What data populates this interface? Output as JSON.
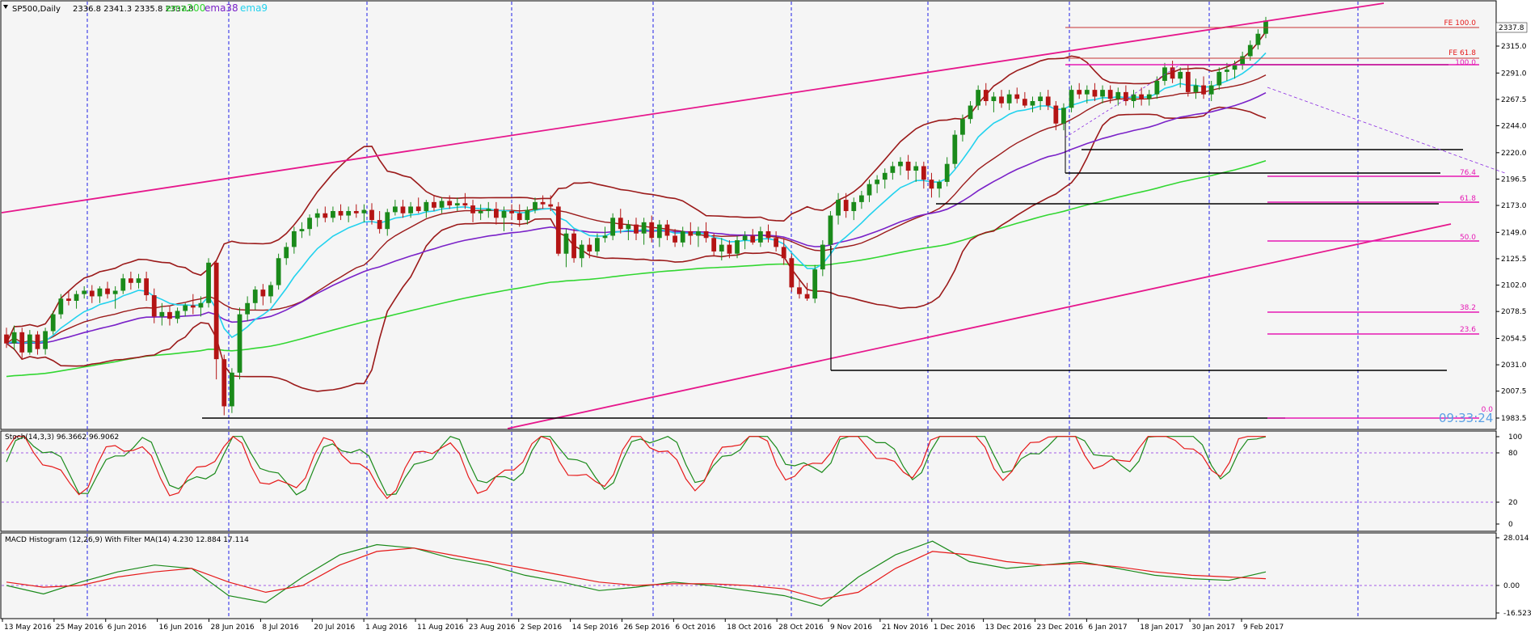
{
  "header": {
    "symbol": "SP500,Daily",
    "ohlc": "2336.8 2341.3 2335.8 2337.8",
    "ema200_label": "ema200",
    "ema38_label": "ema38",
    "ema9_label": "ema9"
  },
  "price_axis": {
    "ticks": [
      "2315.0",
      "2291.0",
      "2267.5",
      "2244.0",
      "2220.0",
      "2196.5",
      "2173.0",
      "2149.0",
      "2125.5",
      "2102.0",
      "2078.5",
      "2054.5",
      "2031.0",
      "2007.5",
      "1983.5"
    ],
    "current": "2337.8"
  },
  "clock": "09:33:24",
  "fib_labels": {
    "fe100": "FE 100.0",
    "fe618": "FE 61.8",
    "r100": "100.0",
    "r764": "76.4",
    "r618": "61.8",
    "r500": "50.0",
    "r382": "38.2",
    "r236": "23.6",
    "r0": "0.0"
  },
  "stoch": {
    "label": "Stoch(14,3,3) 96.3662 96.9062",
    "ticks": [
      "100",
      "80",
      "20",
      "0"
    ]
  },
  "macd": {
    "label": "MACD Histogram (12,26,9) With Filter MA(14) 4.230 12.884 17.114",
    "ticks": [
      "28.014",
      "0.00",
      "-16.523"
    ]
  },
  "date_axis": [
    "13 May 2016",
    "25 May 2016",
    "6 Jun 2016",
    "16 Jun 2016",
    "28 Jun 2016",
    "8 Jul 2016",
    "20 Jul 2016",
    "1 Aug 2016",
    "11 Aug 2016",
    "23 Aug 2016",
    "2 Sep 2016",
    "14 Sep 2016",
    "26 Sep 2016",
    "6 Oct 2016",
    "18 Oct 2016",
    "28 Oct 2016",
    "9 Nov 2016",
    "21 Nov 2016",
    "1 Dec 2016",
    "13 Dec 2016",
    "23 Dec 2016",
    "6 Jan 2017",
    "18 Jan 2017",
    "30 Jan 2017",
    "9 Feb 2017"
  ],
  "colors": {
    "bg": "#f5f5f5",
    "grid": "#1e1ee6",
    "up": "#1a8a1a",
    "down": "#b41414",
    "bollinger": "#9b1a1a",
    "ema200": "#32d732",
    "ema38": "#7a22c8",
    "ema9": "#22d2ee",
    "channel": "#e6178c",
    "fib": "#e619b4",
    "stoch_main": "#1a8a1a",
    "stoch_signal": "#e61919"
  },
  "chart_data": {
    "type": "candlestick",
    "ylim": [
      1983.5,
      2337.8
    ],
    "ohlc": [
      [
        2058,
        2064,
        2046,
        2050
      ],
      [
        2050,
        2066,
        2044,
        2060
      ],
      [
        2060,
        2064,
        2036,
        2042
      ],
      [
        2042,
        2062,
        2040,
        2058
      ],
      [
        2058,
        2061,
        2040,
        2045
      ],
      [
        2045,
        2064,
        2040,
        2061
      ],
      [
        2061,
        2079,
        2058,
        2076
      ],
      [
        2076,
        2094,
        2072,
        2090
      ],
      [
        2090,
        2097,
        2084,
        2088
      ],
      [
        2088,
        2097,
        2081,
        2094
      ],
      [
        2094,
        2101,
        2090,
        2097
      ],
      [
        2097,
        2102,
        2086,
        2092
      ],
      [
        2092,
        2101,
        2086,
        2099
      ],
      [
        2099,
        2105,
        2090,
        2094
      ],
      [
        2094,
        2101,
        2081,
        2097
      ],
      [
        2097,
        2112,
        2094,
        2108
      ],
      [
        2108,
        2114,
        2098,
        2104
      ],
      [
        2104,
        2112,
        2099,
        2108
      ],
      [
        2108,
        2114,
        2088,
        2093
      ],
      [
        2093,
        2099,
        2068,
        2074
      ],
      [
        2074,
        2086,
        2066,
        2078
      ],
      [
        2078,
        2083,
        2066,
        2072
      ],
      [
        2072,
        2082,
        2068,
        2079
      ],
      [
        2079,
        2086,
        2074,
        2084
      ],
      [
        2084,
        2094,
        2076,
        2082
      ],
      [
        2082,
        2092,
        2074,
        2086
      ],
      [
        2086,
        2126,
        2082,
        2122
      ],
      [
        2122,
        2124,
        2018,
        2036
      ],
      [
        2036,
        2040,
        1986,
        1994
      ],
      [
        1994,
        2028,
        1988,
        2024
      ],
      [
        2024,
        2082,
        2018,
        2076
      ],
      [
        2076,
        2092,
        2070,
        2086
      ],
      [
        2086,
        2101,
        2080,
        2098
      ],
      [
        2098,
        2103,
        2084,
        2092
      ],
      [
        2092,
        2105,
        2086,
        2102
      ],
      [
        2102,
        2130,
        2098,
        2126
      ],
      [
        2126,
        2140,
        2120,
        2136
      ],
      [
        2136,
        2154,
        2130,
        2150
      ],
      [
        2150,
        2158,
        2144,
        2152
      ],
      [
        2152,
        2165,
        2146,
        2162
      ],
      [
        2162,
        2170,
        2154,
        2166
      ],
      [
        2166,
        2172,
        2158,
        2162
      ],
      [
        2162,
        2172,
        2158,
        2168
      ],
      [
        2168,
        2174,
        2160,
        2164
      ],
      [
        2164,
        2172,
        2158,
        2168
      ],
      [
        2168,
        2174,
        2162,
        2166
      ],
      [
        2166,
        2174,
        2158,
        2169
      ],
      [
        2169,
        2175,
        2156,
        2160
      ],
      [
        2160,
        2168,
        2148,
        2152
      ],
      [
        2152,
        2170,
        2146,
        2167
      ],
      [
        2167,
        2178,
        2164,
        2172
      ],
      [
        2172,
        2178,
        2162,
        2166
      ],
      [
        2166,
        2176,
        2162,
        2172
      ],
      [
        2172,
        2180,
        2166,
        2168
      ],
      [
        2168,
        2178,
        2162,
        2176
      ],
      [
        2176,
        2182,
        2168,
        2171
      ],
      [
        2171,
        2180,
        2166,
        2177
      ],
      [
        2177,
        2182,
        2170,
        2173
      ],
      [
        2173,
        2180,
        2168,
        2175
      ],
      [
        2175,
        2184,
        2170,
        2173
      ],
      [
        2173,
        2178,
        2158,
        2166
      ],
      [
        2166,
        2174,
        2160,
        2168
      ],
      [
        2168,
        2176,
        2162,
        2170
      ],
      [
        2170,
        2176,
        2156,
        2162
      ],
      [
        2162,
        2172,
        2150,
        2168
      ],
      [
        2168,
        2174,
        2160,
        2166
      ],
      [
        2166,
        2174,
        2154,
        2160
      ],
      [
        2160,
        2172,
        2156,
        2169
      ],
      [
        2169,
        2180,
        2166,
        2176
      ],
      [
        2176,
        2182,
        2170,
        2174
      ],
      [
        2174,
        2182,
        2168,
        2172
      ],
      [
        2172,
        2176,
        2128,
        2130
      ],
      [
        2130,
        2152,
        2118,
        2148
      ],
      [
        2148,
        2152,
        2122,
        2126
      ],
      [
        2126,
        2142,
        2118,
        2138
      ],
      [
        2138,
        2144,
        2126,
        2132
      ],
      [
        2132,
        2148,
        2128,
        2144
      ],
      [
        2144,
        2154,
        2140,
        2146
      ],
      [
        2146,
        2166,
        2142,
        2162
      ],
      [
        2162,
        2170,
        2148,
        2152
      ],
      [
        2152,
        2160,
        2142,
        2156
      ],
      [
        2156,
        2162,
        2142,
        2148
      ],
      [
        2148,
        2162,
        2138,
        2158
      ],
      [
        2158,
        2164,
        2140,
        2144
      ],
      [
        2144,
        2160,
        2136,
        2156
      ],
      [
        2156,
        2160,
        2142,
        2146
      ],
      [
        2146,
        2152,
        2136,
        2140
      ],
      [
        2140,
        2154,
        2136,
        2150
      ],
      [
        2150,
        2158,
        2138,
        2146
      ],
      [
        2146,
        2154,
        2136,
        2150
      ],
      [
        2150,
        2158,
        2140,
        2144
      ],
      [
        2144,
        2148,
        2128,
        2132
      ],
      [
        2132,
        2144,
        2124,
        2138
      ],
      [
        2138,
        2142,
        2126,
        2130
      ],
      [
        2130,
        2146,
        2126,
        2142
      ],
      [
        2142,
        2150,
        2134,
        2146
      ],
      [
        2146,
        2152,
        2138,
        2140
      ],
      [
        2140,
        2154,
        2136,
        2150
      ],
      [
        2150,
        2156,
        2140,
        2144
      ],
      [
        2144,
        2150,
        2132,
        2136
      ],
      [
        2136,
        2144,
        2120,
        2126
      ],
      [
        2126,
        2130,
        2096,
        2100
      ],
      [
        2100,
        2108,
        2090,
        2094
      ],
      [
        2094,
        2104,
        2088,
        2090
      ],
      [
        2090,
        2120,
        2086,
        2116
      ],
      [
        2116,
        2142,
        2110,
        2138
      ],
      [
        2138,
        2168,
        2130,
        2164
      ],
      [
        2164,
        2184,
        2156,
        2178
      ],
      [
        2178,
        2184,
        2162,
        2168
      ],
      [
        2168,
        2180,
        2160,
        2176
      ],
      [
        2176,
        2186,
        2170,
        2182
      ],
      [
        2182,
        2196,
        2176,
        2192
      ],
      [
        2192,
        2200,
        2184,
        2196
      ],
      [
        2196,
        2206,
        2188,
        2202
      ],
      [
        2202,
        2212,
        2196,
        2208
      ],
      [
        2208,
        2216,
        2200,
        2212
      ],
      [
        2212,
        2218,
        2196,
        2204
      ],
      [
        2204,
        2212,
        2194,
        2208
      ],
      [
        2208,
        2212,
        2188,
        2196
      ],
      [
        2196,
        2202,
        2180,
        2188
      ],
      [
        2188,
        2196,
        2180,
        2194
      ],
      [
        2194,
        2216,
        2190,
        2210
      ],
      [
        2210,
        2240,
        2206,
        2236
      ],
      [
        2236,
        2254,
        2230,
        2250
      ],
      [
        2250,
        2266,
        2246,
        2262
      ],
      [
        2262,
        2280,
        2258,
        2276
      ],
      [
        2276,
        2282,
        2262,
        2266
      ],
      [
        2266,
        2274,
        2256,
        2270
      ],
      [
        2270,
        2276,
        2260,
        2264
      ],
      [
        2264,
        2276,
        2258,
        2272
      ],
      [
        2272,
        2278,
        2264,
        2268
      ],
      [
        2268,
        2274,
        2260,
        2262
      ],
      [
        2262,
        2270,
        2256,
        2266
      ],
      [
        2266,
        2274,
        2258,
        2270
      ],
      [
        2270,
        2276,
        2258,
        2262
      ],
      [
        2262,
        2266,
        2240,
        2246
      ],
      [
        2246,
        2264,
        2240,
        2260
      ],
      [
        2260,
        2280,
        2256,
        2276
      ],
      [
        2276,
        2282,
        2268,
        2272
      ],
      [
        2272,
        2280,
        2264,
        2276
      ],
      [
        2276,
        2282,
        2266,
        2270
      ],
      [
        2270,
        2280,
        2264,
        2276
      ],
      [
        2276,
        2280,
        2264,
        2268
      ],
      [
        2268,
        2278,
        2262,
        2274
      ],
      [
        2274,
        2280,
        2262,
        2266
      ],
      [
        2266,
        2276,
        2260,
        2272
      ],
      [
        2272,
        2278,
        2262,
        2268
      ],
      [
        2268,
        2276,
        2262,
        2272
      ],
      [
        2272,
        2288,
        2268,
        2284
      ],
      [
        2284,
        2300,
        2280,
        2296
      ],
      [
        2296,
        2302,
        2282,
        2286
      ],
      [
        2286,
        2296,
        2278,
        2292
      ],
      [
        2292,
        2298,
        2270,
        2274
      ],
      [
        2274,
        2286,
        2268,
        2280
      ],
      [
        2280,
        2288,
        2268,
        2272
      ],
      [
        2272,
        2284,
        2266,
        2280
      ],
      [
        2280,
        2296,
        2276,
        2292
      ],
      [
        2292,
        2300,
        2284,
        2294
      ],
      [
        2294,
        2302,
        2286,
        2298
      ],
      [
        2298,
        2310,
        2294,
        2306
      ],
      [
        2306,
        2320,
        2302,
        2316
      ],
      [
        2316,
        2330,
        2312,
        2326
      ],
      [
        2326,
        2341,
        2322,
        2337.8
      ]
    ],
    "stoch_series": [
      [
        40,
        30,
        25,
        30,
        45,
        70,
        85,
        95,
        98,
        92
      ],
      [
        35,
        28,
        22,
        25,
        35,
        55,
        75,
        88,
        95,
        94
      ]
    ],
    "macd_series": [
      [
        0,
        -5,
        2,
        8,
        12,
        10,
        -6,
        -10,
        5,
        18,
        24,
        22,
        16,
        12,
        6,
        2,
        -3,
        -1,
        2,
        0,
        -3,
        -6,
        -12,
        5,
        18,
        26,
        14,
        10,
        12,
        14,
        10,
        6,
        4,
        3,
        8
      ],
      [
        2,
        -1,
        0,
        5,
        8,
        10,
        2,
        -4,
        0,
        12,
        20,
        22,
        18,
        14,
        10,
        6,
        2,
        0,
        1,
        1,
        0,
        -2,
        -8,
        -4,
        10,
        20,
        18,
        14,
        12,
        13,
        11,
        8,
        6,
        5,
        4
      ]
    ]
  }
}
